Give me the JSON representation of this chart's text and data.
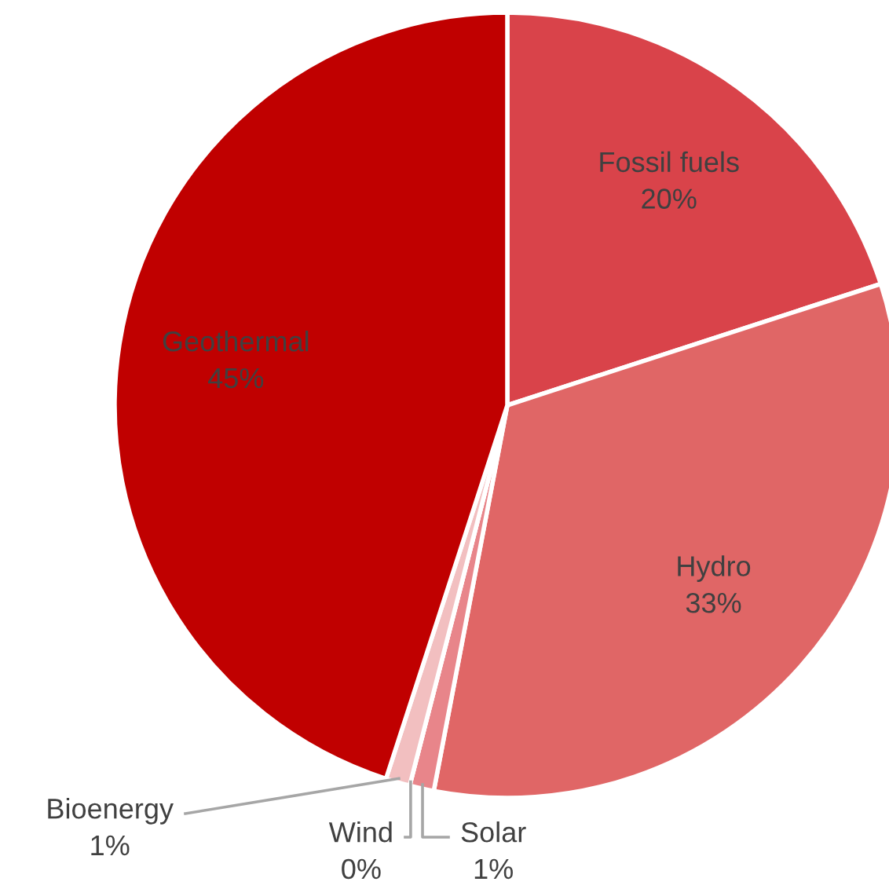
{
  "chart_data": {
    "type": "pie",
    "categories": [
      "Fossil fuels",
      "Hydro",
      "Solar",
      "Wind",
      "Bioenergy",
      "Geothermal"
    ],
    "values": [
      20,
      33,
      1,
      0,
      1,
      45
    ],
    "value_labels": [
      "20%",
      "33%",
      "1%",
      "0%",
      "1%",
      "45%"
    ],
    "colors": [
      "#d9434a",
      "#e06666",
      "#e8858a",
      "#f0a0a3",
      "#f2bfc0",
      "#c00000"
    ]
  }
}
